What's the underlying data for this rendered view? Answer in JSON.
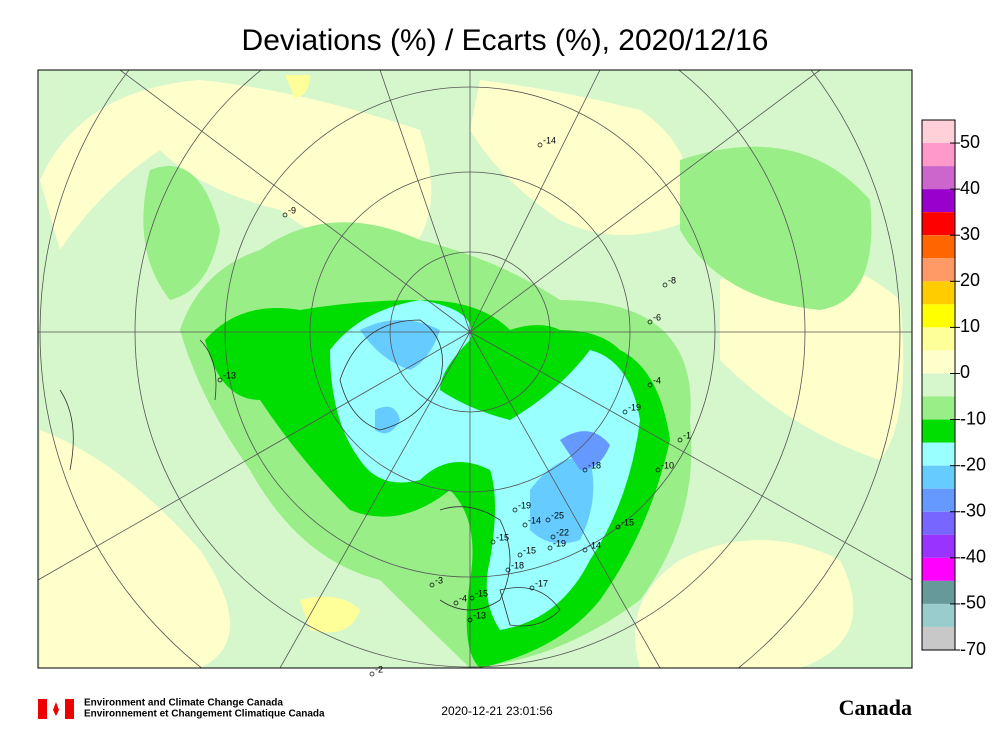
{
  "chart_data": {
    "type": "contour-map",
    "title": "Deviations (%) / Ecarts (%), 2020/12/16",
    "levels": [
      50,
      40,
      30,
      20,
      10,
      0,
      -10,
      -20,
      -30,
      -40,
      -50,
      -70
    ],
    "level_colors": [
      "#ffd0d8",
      "#ff99cc",
      "#cc66cc",
      "#9900cc",
      "#ff0000",
      "#ff6600",
      "#ff9966",
      "#ffcc00",
      "#ffff00",
      "#ffff99",
      "#ffffcc",
      "#d6f7cc",
      "#99ee88",
      "#00dd00",
      "#99ffff",
      "#66ccff",
      "#6699ff",
      "#7766ff",
      "#9933ff",
      "#ff00ff",
      "#669999",
      "#99cccc",
      "#c8c8c8"
    ],
    "stations": {
      "values": [
        -13,
        -9,
        -14,
        -8,
        -6,
        -4,
        -19,
        -1,
        -10,
        -18,
        -19,
        -14,
        -25,
        -22,
        -19,
        -15,
        -15,
        -18,
        -14,
        -15,
        -17,
        -3,
        -4,
        -15,
        -13,
        -2
      ]
    }
  },
  "footer": {
    "agency_en": "Environment and Climate Change Canada",
    "agency_fr": "Environnement et Changement Climatique Canada",
    "timestamp": "2020-12-21 23:01:56",
    "wordmark": "Canada"
  }
}
